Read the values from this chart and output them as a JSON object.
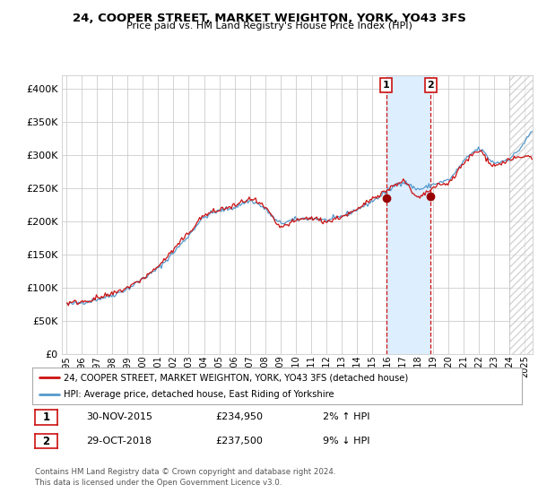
{
  "title": "24, COOPER STREET, MARKET WEIGHTON, YORK, YO43 3FS",
  "subtitle": "Price paid vs. HM Land Registry's House Price Index (HPI)",
  "legend_line1": "24, COOPER STREET, MARKET WEIGHTON, YORK, YO43 3FS (detached house)",
  "legend_line2": "HPI: Average price, detached house, East Riding of Yorkshire",
  "footnote": "Contains HM Land Registry data © Crown copyright and database right 2024.\nThis data is licensed under the Open Government Licence v3.0.",
  "sale1": {
    "label": "1",
    "date": "30-NOV-2015",
    "price": "£234,950",
    "change": "2% ↑ HPI"
  },
  "sale2": {
    "label": "2",
    "date": "29-OCT-2018",
    "price": "£237,500",
    "change": "9% ↓ HPI"
  },
  "hpi_color": "#5599cc",
  "price_color": "#cc1111",
  "sale_marker_color": "#990000",
  "highlight_color": "#ddeeff",
  "highlight_border": "#cc1111",
  "ylim": [
    0,
    420000
  ],
  "yticks": [
    0,
    50000,
    100000,
    150000,
    200000,
    250000,
    300000,
    350000,
    400000
  ],
  "background_color": "#ffffff",
  "grid_color": "#cccccc",
  "sale1_x": 2015.92,
  "sale1_y": 234950,
  "sale2_x": 2018.83,
  "sale2_y": 237500,
  "highlight_x1": 2015.92,
  "highlight_x2": 2018.83,
  "hatch_start": 2024.0,
  "xmin": 1995.0,
  "xmax": 2025.5
}
